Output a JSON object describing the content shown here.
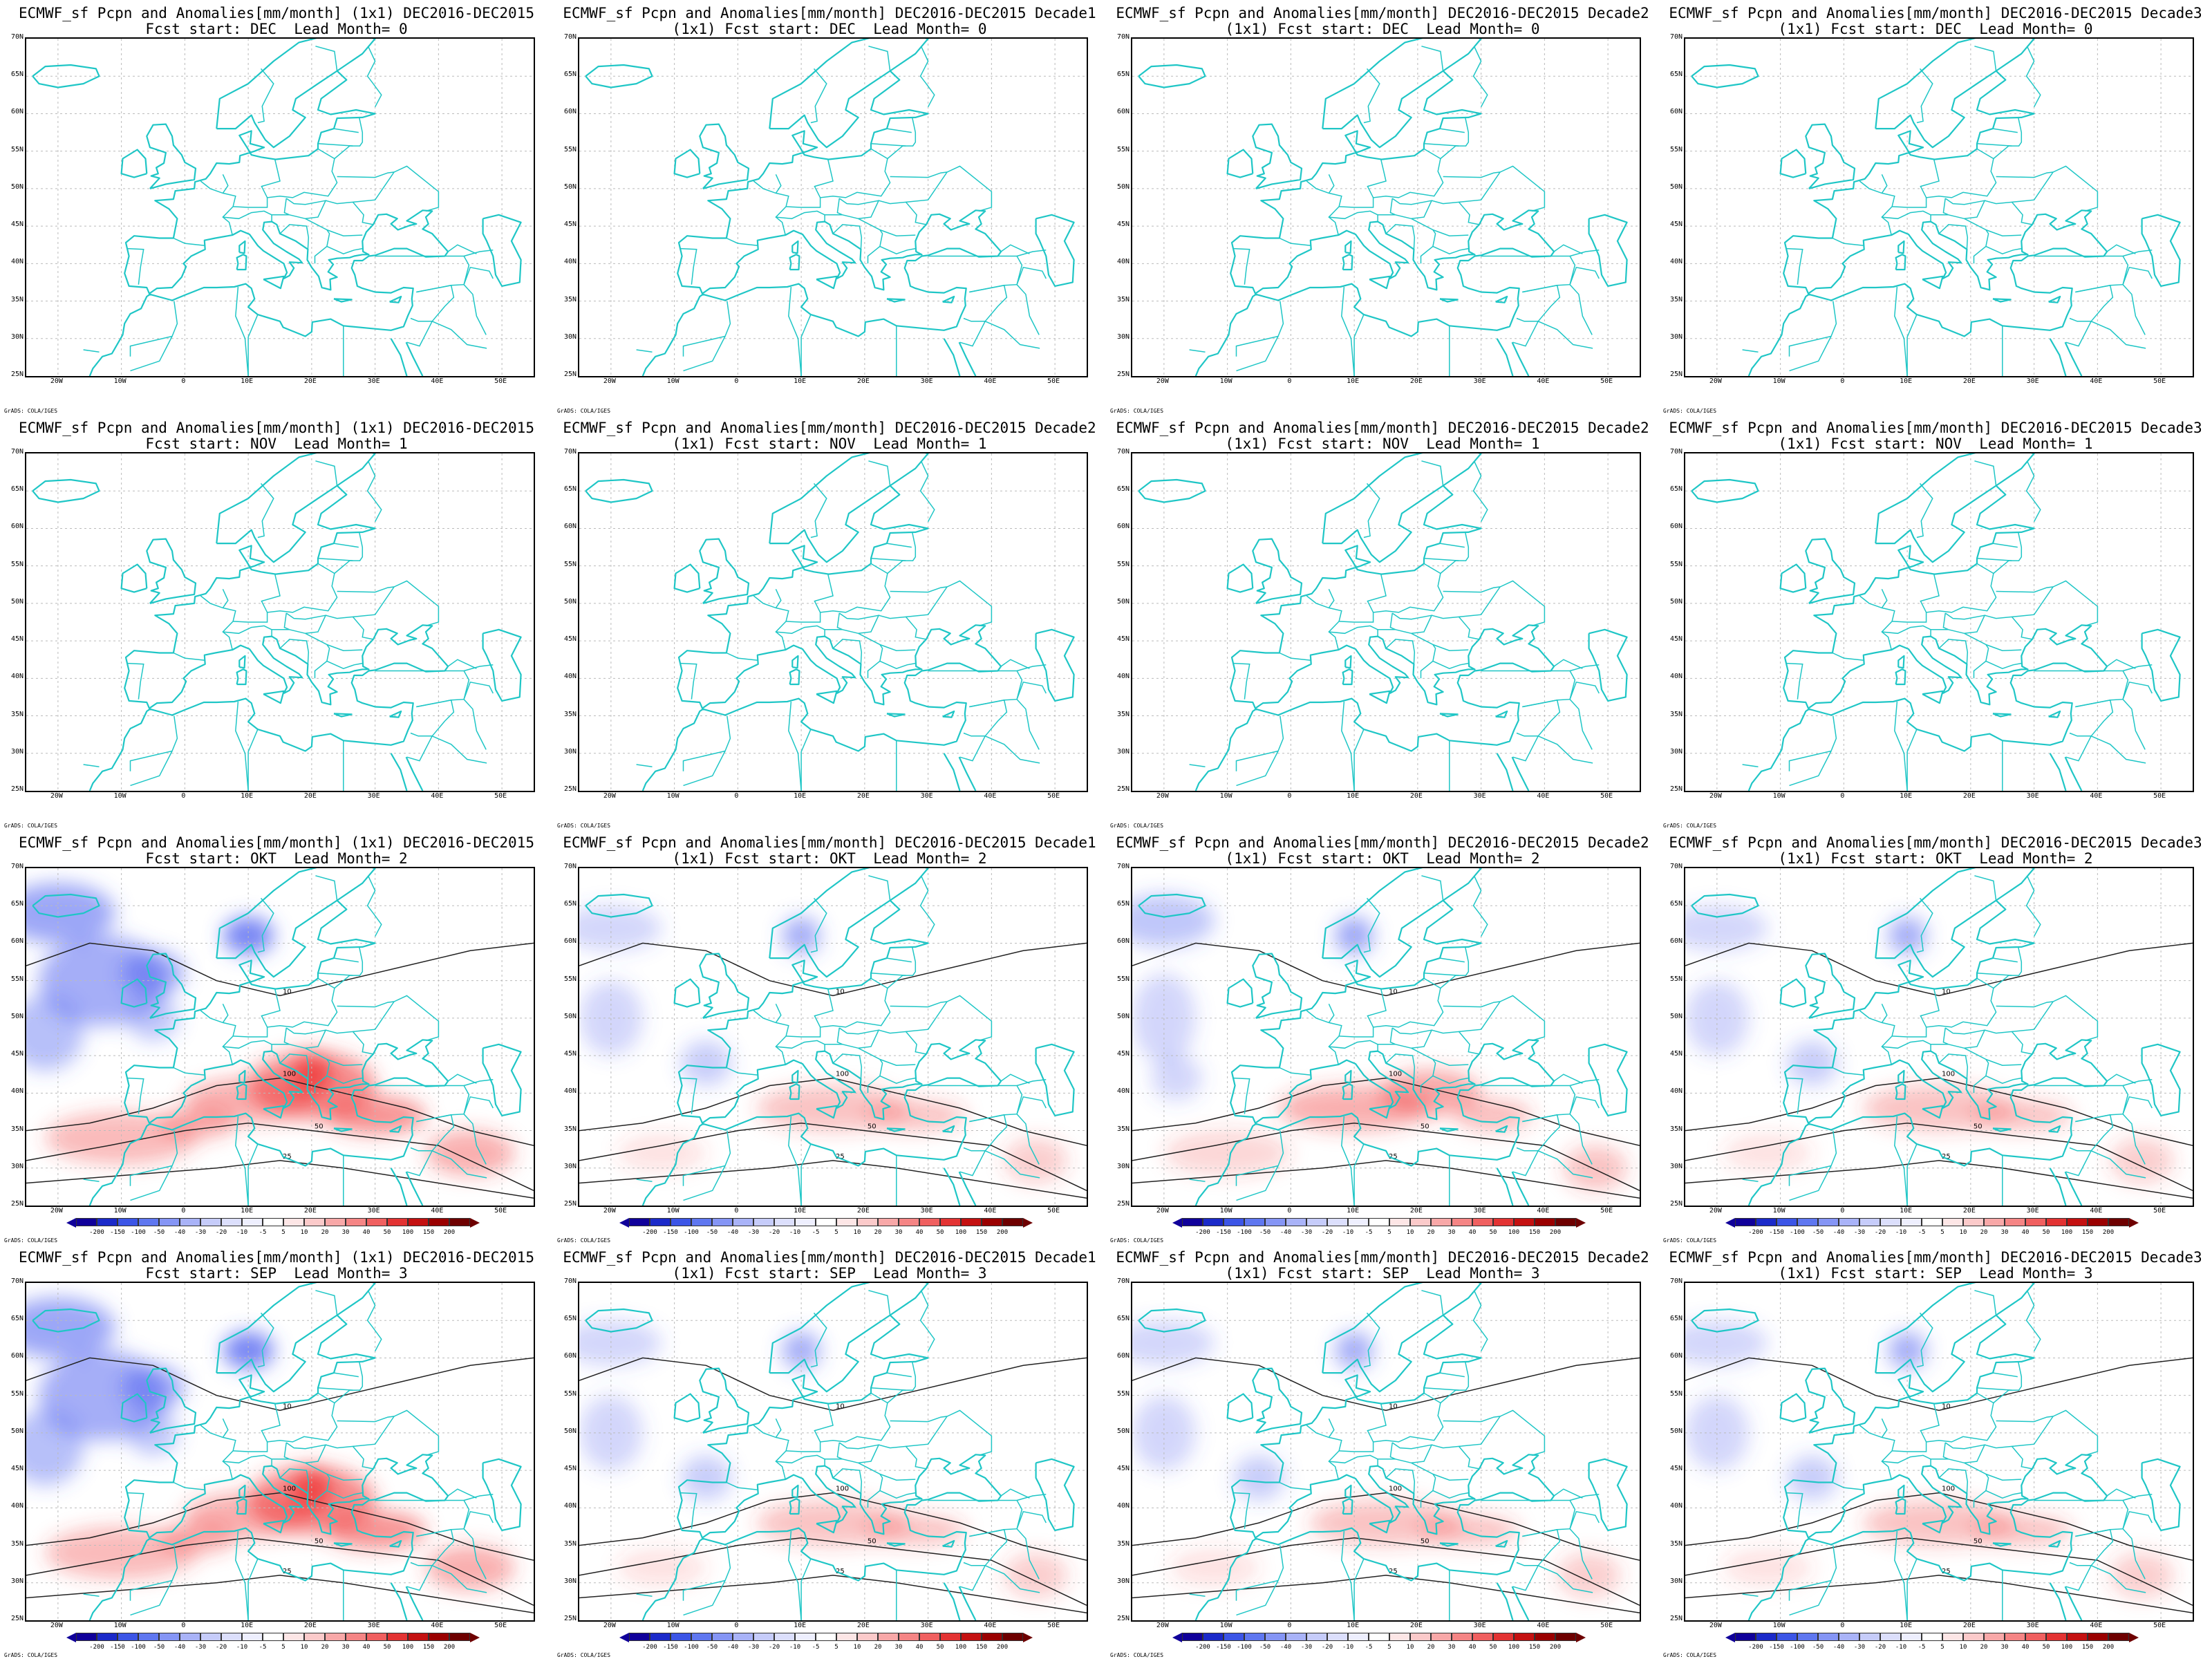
{
  "panels": [
    {
      "title1": "ECMWF_sf Pcpn and Anomalies[mm/month] (1x1) DEC2016-DEC2015",
      "title2": "Fcst start: DEC  Lead Month= 0",
      "anomaly": "none",
      "colorbar": false
    },
    {
      "title1": "ECMWF_sf Pcpn and Anomalies[mm/month] DEC2016-DEC2015 Decade1",
      "title2": "(1x1) Fcst start: DEC  Lead Month= 0",
      "anomaly": "none",
      "colorbar": false
    },
    {
      "title1": "ECMWF_sf Pcpn and Anomalies[mm/month] DEC2016-DEC2015 Decade2",
      "title2": "(1x1) Fcst start: DEC  Lead Month= 0",
      "anomaly": "none",
      "colorbar": false
    },
    {
      "title1": "ECMWF_sf Pcpn and Anomalies[mm/month] DEC2016-DEC2015 Decade3",
      "title2": "(1x1) Fcst start: DEC  Lead Month= 0",
      "anomaly": "none",
      "colorbar": false
    },
    {
      "title1": "ECMWF_sf Pcpn and Anomalies[mm/month] (1x1) DEC2016-DEC2015",
      "title2": "Fcst start: NOV  Lead Month= 1",
      "anomaly": "none",
      "colorbar": false
    },
    {
      "title1": "ECMWF_sf Pcpn and Anomalies[mm/month] DEC2016-DEC2015 Decade2",
      "title2": "(1x1) Fcst start: NOV  Lead Month= 1",
      "anomaly": "none",
      "colorbar": false
    },
    {
      "title1": "ECMWF_sf Pcpn and Anomalies[mm/month] DEC2016-DEC2015 Decade2",
      "title2": "(1x1) Fcst start: NOV  Lead Month= 1",
      "anomaly": "none",
      "colorbar": false
    },
    {
      "title1": "ECMWF_sf Pcpn and Anomalies[mm/month] DEC2016-DEC2015 Decade3",
      "title2": "(1x1) Fcst start: NOV  Lead Month= 1",
      "anomaly": "none",
      "colorbar": false
    },
    {
      "title1": "ECMWF_sf Pcpn and Anomalies[mm/month] (1x1) DEC2016-DEC2015",
      "title2": "Fcst start: OKT  Lead Month= 2",
      "anomaly": "strong",
      "colorbar": true
    },
    {
      "title1": "ECMWF_sf Pcpn and Anomalies[mm/month] DEC2016-DEC2015 Decade1",
      "title2": "(1x1) Fcst start: OKT  Lead Month= 2",
      "anomaly": "weak",
      "colorbar": true
    },
    {
      "title1": "ECMWF_sf Pcpn and Anomalies[mm/month] DEC2016-DEC2015 Decade2",
      "title2": "(1x1) Fcst start: OKT  Lead Month= 2",
      "anomaly": "medium",
      "colorbar": true
    },
    {
      "title1": "ECMWF_sf Pcpn and Anomalies[mm/month] DEC2016-DEC2015 Decade3",
      "title2": "(1x1) Fcst start: OKT  Lead Month= 2",
      "anomaly": "weak",
      "colorbar": true
    },
    {
      "title1": "ECMWF_sf Pcpn and Anomalies[mm/month] (1x1) DEC2016-DEC2015",
      "title2": "Fcst start: SEP  Lead Month= 3",
      "anomaly": "strong",
      "colorbar": true
    },
    {
      "title1": "ECMWF_sf Pcpn and Anomalies[mm/month] DEC2016-DEC2015 Decade1",
      "title2": "(1x1) Fcst start: SEP  Lead Month= 3",
      "anomaly": "weak",
      "colorbar": true
    },
    {
      "title1": "ECMWF_sf Pcpn and Anomalies[mm/month] DEC2016-DEC2015 Decade2",
      "title2": "(1x1) Fcst start: SEP  Lead Month= 3",
      "anomaly": "weak",
      "colorbar": true
    },
    {
      "title1": "ECMWF_sf Pcpn and Anomalies[mm/month] DEC2016-DEC2015 Decade3",
      "title2": "(1x1) Fcst start: SEP  Lead Month= 3",
      "anomaly": "weak",
      "colorbar": true
    }
  ],
  "lat_labels": [
    "70N",
    "65N",
    "60N",
    "55N",
    "50N",
    "45N",
    "40N",
    "35N",
    "30N",
    "25N"
  ],
  "lon_labels": [
    "20W",
    "10W",
    "0",
    "10E",
    "20E",
    "30E",
    "40E",
    "50E"
  ],
  "colorbar_labels": [
    "-200",
    "-150",
    "-100",
    "-50",
    "-40",
    "-30",
    "-20",
    "-10",
    "-5",
    "5",
    "10",
    "20",
    "30",
    "40",
    "50",
    "100",
    "150",
    "200"
  ],
  "colorbar_colors": [
    "#10009a",
    "#1b2ac9",
    "#3c55e6",
    "#5f77f0",
    "#8595f5",
    "#a9b3f8",
    "#c6ccfa",
    "#dcdffc",
    "#eeeffe",
    "#ffffff",
    "#fde6e6",
    "#fbcaca",
    "#f8a8a8",
    "#f58585",
    "#f06060",
    "#e33333",
    "#c41111",
    "#9a0000",
    "#6e0000"
  ],
  "credit": "GrADS: COLA/IGES",
  "contour_labels": [
    "100",
    "50",
    "25",
    "10",
    "150"
  ]
}
